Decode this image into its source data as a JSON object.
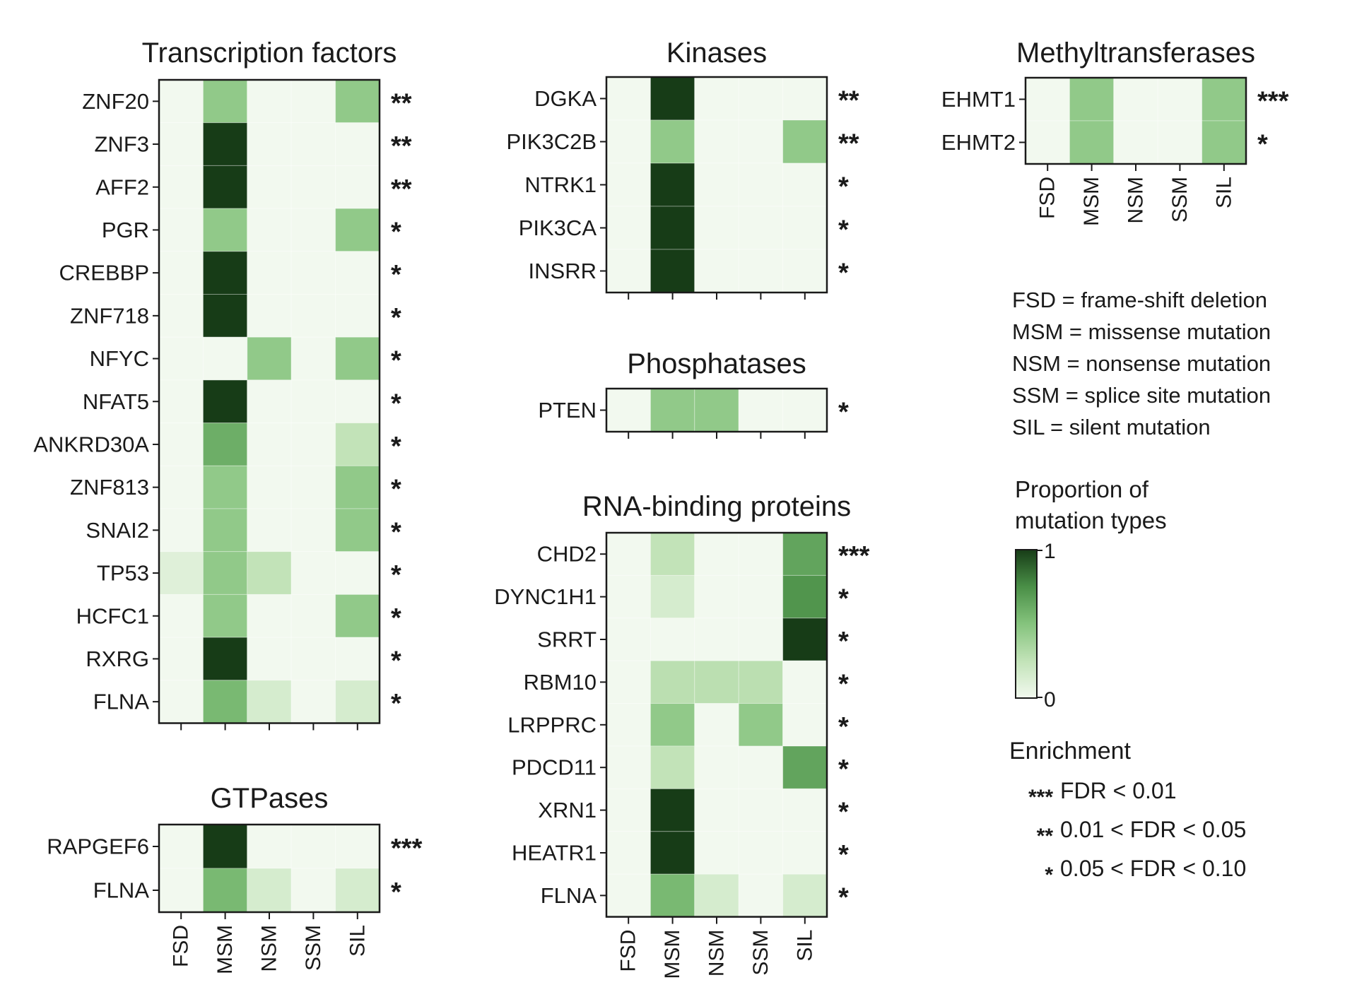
{
  "chart_data": {
    "type": "heatmap",
    "columns": [
      "FSD",
      "MSM",
      "NSM",
      "SSM",
      "SIL"
    ],
    "color_scale": {
      "low": "#f2f9ef",
      "high": "#173c17",
      "min": 0,
      "max": 1
    },
    "panels": [
      {
        "title": "Transcription factors",
        "rows": [
          {
            "gene": "ZNF20",
            "values": [
              0,
              0.45,
              0,
              0,
              0.45
            ],
            "sig": "**"
          },
          {
            "gene": "ZNF3",
            "values": [
              0,
              1,
              0,
              0,
              0
            ],
            "sig": "**"
          },
          {
            "gene": "AFF2",
            "values": [
              0,
              1,
              0,
              0,
              0
            ],
            "sig": "**"
          },
          {
            "gene": "PGR",
            "values": [
              0,
              0.45,
              0,
              0,
              0.45
            ],
            "sig": "*"
          },
          {
            "gene": "CREBBP",
            "values": [
              0,
              1,
              0,
              0,
              0
            ],
            "sig": "*"
          },
          {
            "gene": "ZNF718",
            "values": [
              0,
              1,
              0,
              0,
              0
            ],
            "sig": "*"
          },
          {
            "gene": "NFYC",
            "values": [
              0,
              0,
              0.45,
              0,
              0.45
            ],
            "sig": "*"
          },
          {
            "gene": "NFAT5",
            "values": [
              0,
              1,
              0,
              0,
              0
            ],
            "sig": "*"
          },
          {
            "gene": "ANKRD30A",
            "values": [
              0,
              0.6,
              0,
              0,
              0.25
            ],
            "sig": "*"
          },
          {
            "gene": "ZNF813",
            "values": [
              0,
              0.45,
              0,
              0,
              0.45
            ],
            "sig": "*"
          },
          {
            "gene": "SNAI2",
            "values": [
              0,
              0.45,
              0,
              0,
              0.45
            ],
            "sig": "*"
          },
          {
            "gene": "TP53",
            "values": [
              0.1,
              0.45,
              0.25,
              0,
              0
            ],
            "sig": "*"
          },
          {
            "gene": "HCFC1",
            "values": [
              0,
              0.45,
              0,
              0,
              0.45
            ],
            "sig": "*"
          },
          {
            "gene": "RXRG",
            "values": [
              0,
              1,
              0,
              0,
              0
            ],
            "sig": "*"
          },
          {
            "gene": "FLNA",
            "values": [
              0,
              0.55,
              0.15,
              0,
              0.15
            ],
            "sig": "*"
          }
        ]
      },
      {
        "title": "GTPases",
        "rows": [
          {
            "gene": "RAPGEF6",
            "values": [
              0,
              1,
              0,
              0,
              0
            ],
            "sig": "***"
          },
          {
            "gene": "FLNA",
            "values": [
              0,
              0.55,
              0.15,
              0,
              0.15
            ],
            "sig": "*"
          }
        ]
      },
      {
        "title": "Kinases",
        "rows": [
          {
            "gene": "DGKA",
            "values": [
              0,
              1,
              0,
              0,
              0
            ],
            "sig": "**"
          },
          {
            "gene": "PIK3C2B",
            "values": [
              0,
              0.45,
              0,
              0,
              0.45
            ],
            "sig": "**"
          },
          {
            "gene": "NTRK1",
            "values": [
              0,
              1,
              0,
              0,
              0
            ],
            "sig": "*"
          },
          {
            "gene": "PIK3CA",
            "values": [
              0,
              1,
              0,
              0,
              0
            ],
            "sig": "*"
          },
          {
            "gene": "INSRR",
            "values": [
              0,
              1,
              0,
              0,
              0
            ],
            "sig": "*"
          }
        ]
      },
      {
        "title": "Phosphatases",
        "rows": [
          {
            "gene": "PTEN",
            "values": [
              0,
              0.45,
              0.45,
              0,
              0
            ],
            "sig": "*"
          }
        ]
      },
      {
        "title": "RNA-binding proteins",
        "rows": [
          {
            "gene": "CHD2",
            "values": [
              0,
              0.25,
              0,
              0,
              0.65
            ],
            "sig": "***"
          },
          {
            "gene": "DYNC1H1",
            "values": [
              0,
              0.15,
              0,
              0,
              0.72
            ],
            "sig": "*"
          },
          {
            "gene": "SRRT",
            "values": [
              0,
              0,
              0,
              0,
              1
            ],
            "sig": "*"
          },
          {
            "gene": "RBM10",
            "values": [
              0,
              0.28,
              0.28,
              0.28,
              0
            ],
            "sig": "*"
          },
          {
            "gene": "LRPPRC",
            "values": [
              0,
              0.45,
              0,
              0.45,
              0
            ],
            "sig": "*"
          },
          {
            "gene": "PDCD11",
            "values": [
              0,
              0.25,
              0,
              0,
              0.65
            ],
            "sig": "*"
          },
          {
            "gene": "XRN1",
            "values": [
              0,
              1,
              0,
              0,
              0
            ],
            "sig": "*"
          },
          {
            "gene": "HEATR1",
            "values": [
              0,
              1,
              0,
              0,
              0
            ],
            "sig": "*"
          },
          {
            "gene": "FLNA",
            "values": [
              0,
              0.55,
              0.15,
              0,
              0.15
            ],
            "sig": "*"
          }
        ]
      },
      {
        "title": "Methyltransferases",
        "rows": [
          {
            "gene": "EHMT1",
            "values": [
              0,
              0.45,
              0,
              0,
              0.45
            ],
            "sig": "***"
          },
          {
            "gene": "EHMT2",
            "values": [
              0,
              0.45,
              0,
              0,
              0.45
            ],
            "sig": "*"
          }
        ]
      }
    ],
    "abbreviations": [
      "FSD = frame-shift deletion",
      "MSM = missense mutation",
      "NSM = nonsense mutation",
      "SSM = splice site mutation",
      "SIL = silent mutation"
    ],
    "colorbar": {
      "title": [
        "Proportion of",
        "mutation types"
      ],
      "max_label": "1",
      "min_label": "0"
    },
    "enrichment": {
      "title": "Enrichment",
      "entries": [
        {
          "stars": "***",
          "text": "FDR < 0.01"
        },
        {
          "stars": "**",
          "text": "0.01 < FDR < 0.05"
        },
        {
          "stars": "*",
          "text": "0.05 < FDR < 0.10"
        }
      ]
    }
  }
}
